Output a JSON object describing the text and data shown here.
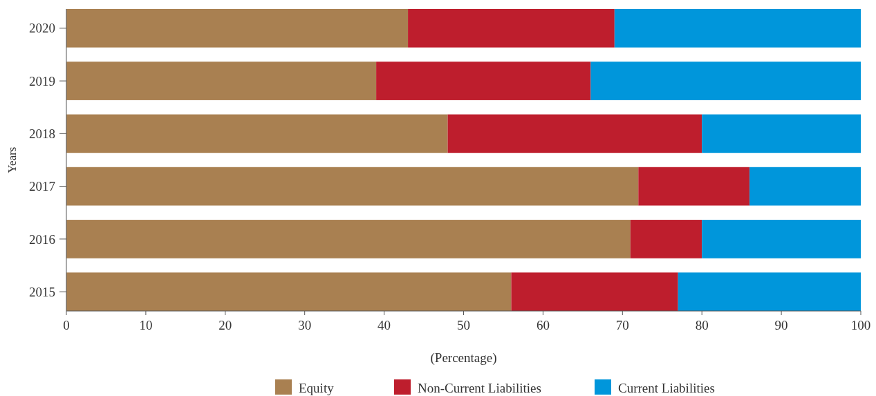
{
  "chart_data": {
    "type": "bar",
    "orientation": "horizontal",
    "stacked": true,
    "categories": [
      "2020",
      "2019",
      "2018",
      "2017",
      "2016",
      "2015"
    ],
    "xlabel": "(Percentage)",
    "ylabel": "Years",
    "xlim": [
      0,
      100
    ],
    "xticks": [
      0,
      10,
      20,
      30,
      40,
      50,
      60,
      70,
      80,
      90,
      100
    ],
    "legend": "bottom",
    "grid": false,
    "series": [
      {
        "name": "Equity",
        "color": "#a98051",
        "values": [
          43,
          39,
          48,
          72,
          71,
          56
        ]
      },
      {
        "name": "Non-Current Liabilities",
        "color": "#be1e2d",
        "values": [
          26,
          27,
          32,
          14,
          9,
          21
        ]
      },
      {
        "name": "Current Liabilities",
        "color": "#0096db",
        "values": [
          31,
          34,
          20,
          14,
          20,
          23
        ]
      }
    ]
  }
}
